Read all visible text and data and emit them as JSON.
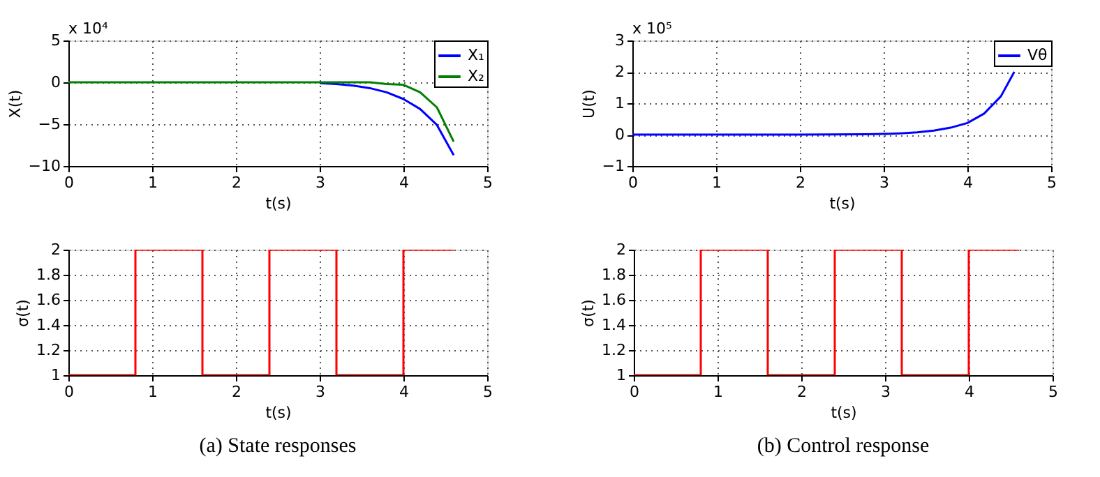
{
  "chart_data": [
    {
      "type": "line",
      "xlabel": "t(s)",
      "ylabel": "X(t)",
      "xlim": [
        0,
        5
      ],
      "xticks": [
        0,
        1,
        2,
        3,
        4,
        5
      ],
      "ylim": [
        -10,
        5
      ],
      "yticks": [
        -10,
        -5,
        0,
        5
      ],
      "grid": true,
      "legend": "top right",
      "annotations": [
        "x 10⁴"
      ],
      "series": [
        {
          "name": "X₁",
          "color": "#0000ff",
          "x": [
            3.0,
            3.2,
            3.4,
            3.6,
            3.8,
            4.0,
            4.2,
            4.4,
            4.6
          ],
          "values": [
            -0.1,
            -0.2,
            -0.4,
            -0.7,
            -1.2,
            -2.0,
            -3.2,
            -5.1,
            -8.7
          ]
        },
        {
          "name": "X₂",
          "color": "#008000",
          "x": [
            0,
            1,
            2,
            3,
            3.6,
            3.8,
            4.0,
            4.2,
            4.4,
            4.6
          ],
          "values": [
            0,
            0,
            0,
            0,
            0,
            -0.2,
            -0.3,
            -1.2,
            -3.0,
            -7.1
          ]
        }
      ]
    },
    {
      "type": "line",
      "xlabel": "t(s)",
      "ylabel": "U(t)",
      "xlim": [
        0,
        5
      ],
      "xticks": [
        0,
        1,
        2,
        3,
        4,
        5
      ],
      "ylim": [
        -1,
        3
      ],
      "yticks": [
        -1,
        0,
        1,
        2,
        3
      ],
      "grid": true,
      "legend": "top right",
      "annotations": [
        "x 10⁵"
      ],
      "series": [
        {
          "name": "Vθ",
          "color": "#0000ff",
          "x": [
            0,
            1,
            2,
            2.8,
            3.0,
            3.2,
            3.4,
            3.6,
            3.8,
            4.0,
            4.2,
            4.4,
            4.56
          ],
          "values": [
            0,
            0,
            0,
            0.01,
            0.02,
            0.04,
            0.07,
            0.13,
            0.22,
            0.37,
            0.67,
            1.22,
            2.0
          ]
        }
      ]
    },
    {
      "type": "step",
      "xlabel": "t(s)",
      "ylabel": "σ(t)",
      "xlim": [
        0,
        5
      ],
      "xticks": [
        0,
        1,
        2,
        3,
        4,
        5
      ],
      "ylim": [
        1,
        2
      ],
      "yticks": [
        1,
        1.2,
        1.4,
        1.6,
        1.8,
        2
      ],
      "grid": true,
      "annotations": [
        "(a) State responses"
      ],
      "series": [
        {
          "color": "#ff0000",
          "x": [
            0,
            0.8,
            1.6,
            2.4,
            3.2,
            4.0,
            4.6
          ],
          "values": [
            1,
            2,
            1,
            2,
            1,
            2,
            2
          ]
        }
      ]
    },
    {
      "type": "step",
      "xlabel": "t(s)",
      "ylabel": "σ(t)",
      "xlim": [
        0,
        5
      ],
      "xticks": [
        0,
        1,
        2,
        3,
        4,
        5
      ],
      "ylim": [
        1,
        2
      ],
      "yticks": [
        1,
        1.2,
        1.4,
        1.6,
        1.8,
        2
      ],
      "grid": true,
      "annotations": [
        "(b) Control response"
      ],
      "series": [
        {
          "color": "#ff0000",
          "x": [
            0,
            0.8,
            1.6,
            2.4,
            3.2,
            4.0,
            4.6
          ],
          "values": [
            1,
            2,
            1,
            2,
            1,
            2,
            2
          ]
        }
      ]
    }
  ]
}
